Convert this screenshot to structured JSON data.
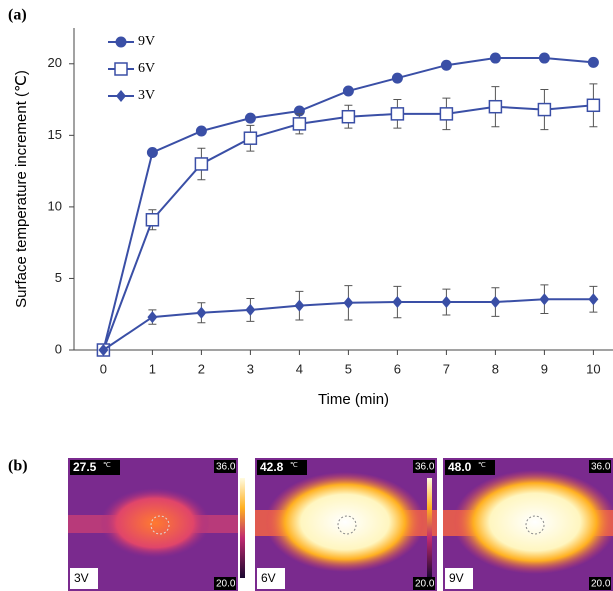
{
  "panels": {
    "a": "(a)",
    "b": "(b)"
  },
  "chart_data": {
    "type": "line",
    "x_label": "Time (min)",
    "y_label": "Surface temperature increment (℃)",
    "x": [
      0,
      1,
      2,
      3,
      4,
      5,
      6,
      7,
      8,
      9,
      10
    ],
    "xlim": [
      -0.6,
      10.4
    ],
    "xticks": [
      0,
      1,
      2,
      3,
      4,
      5,
      6,
      7,
      8,
      9,
      10
    ],
    "ylim": [
      0,
      22.5
    ],
    "yticks": [
      0,
      5,
      10,
      15,
      20
    ],
    "legend": "upper left",
    "series": [
      {
        "name": "9V",
        "color": "#3a4fa6",
        "marker": "circle",
        "values": [
          0,
          13.8,
          15.3,
          16.2,
          16.7,
          18.1,
          19.0,
          19.9,
          20.4,
          20.4,
          20.1
        ]
      },
      {
        "name": "6V",
        "color": "#3a4fa6",
        "marker": "square",
        "values": [
          0,
          9.1,
          13.0,
          14.8,
          15.8,
          16.3,
          16.5,
          16.5,
          17.0,
          16.8,
          17.1
        ],
        "errors": [
          0,
          0.7,
          1.1,
          0.9,
          0.7,
          0.8,
          1.0,
          1.1,
          1.4,
          1.4,
          1.5
        ]
      },
      {
        "name": "3V",
        "color": "#3a4fa6",
        "marker": "diamond",
        "values": [
          0,
          2.3,
          2.6,
          2.8,
          3.1,
          3.3,
          3.35,
          3.35,
          3.35,
          3.55,
          3.55
        ],
        "errors": [
          0,
          0.5,
          0.7,
          0.8,
          1.0,
          1.2,
          1.1,
          0.9,
          1.0,
          1.0,
          0.9
        ]
      }
    ]
  },
  "thermal_images": [
    {
      "temperature": "27.5",
      "unit": "℃",
      "max": "36.0",
      "min": "20.0",
      "voltage": "3V"
    },
    {
      "temperature": "42.8",
      "unit": "℃",
      "max": "36.0",
      "min": "20.0",
      "voltage": "6V"
    },
    {
      "temperature": "48.0",
      "unit": "℃",
      "max": "36.0",
      "min": "20.0",
      "voltage": "9V"
    }
  ]
}
